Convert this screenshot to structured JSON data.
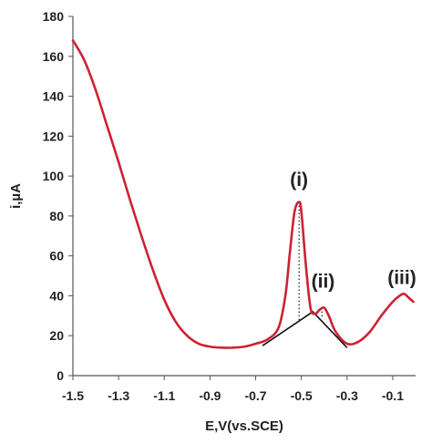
{
  "chart_data": {
    "type": "line",
    "title": "",
    "xlabel": "E,V(vs.SCE)",
    "ylabel": "i,µA",
    "xlim": [
      -1.5,
      0.0
    ],
    "ylim": [
      0,
      180
    ],
    "x_ticks": [
      "-1.5",
      "-1.3",
      "-1.1",
      "-0.9",
      "-0.7",
      "-0.5",
      "-0.3",
      "-0.1"
    ],
    "y_ticks": [
      "0",
      "20",
      "40",
      "60",
      "80",
      "100",
      "120",
      "140",
      "160",
      "180"
    ],
    "grid": false,
    "legend": "none",
    "series": [
      {
        "color": "#cc2233",
        "x": [
          -1.5,
          -1.45,
          -1.4,
          -1.35,
          -1.3,
          -1.25,
          -1.2,
          -1.15,
          -1.1,
          -1.05,
          -1.0,
          -0.95,
          -0.9,
          -0.85,
          -0.8,
          -0.75,
          -0.7,
          -0.65,
          -0.6,
          -0.57,
          -0.55,
          -0.53,
          -0.51,
          -0.5,
          -0.48,
          -0.46,
          -0.44,
          -0.42,
          -0.4,
          -0.38,
          -0.35,
          -0.3,
          -0.25,
          -0.2,
          -0.15,
          -0.1,
          -0.07,
          -0.05,
          -0.03,
          -0.01
        ],
        "y": [
          168,
          158,
          143,
          125,
          107,
          88,
          70,
          53,
          38,
          27,
          20,
          16,
          14.5,
          14,
          14,
          14.5,
          16,
          18,
          24,
          40,
          62,
          82,
          87,
          82,
          55,
          34,
          31,
          33,
          34,
          30,
          22,
          16,
          17,
          22,
          30,
          37,
          40,
          41,
          39,
          37
        ]
      }
    ],
    "annotations": [
      {
        "text": "(i)",
        "x": -0.51,
        "y": 95
      },
      {
        "text": "(ii)",
        "x": -0.405,
        "y": 44
      },
      {
        "text": "(iii)",
        "x": -0.06,
        "y": 46
      }
    ],
    "baselines": [
      {
        "x": [
          -0.67,
          -0.45,
          -0.3
        ],
        "y": [
          15,
          32,
          14
        ]
      }
    ],
    "drop_lines": [
      {
        "x": -0.51,
        "y_from": 87,
        "y_to": 27
      },
      {
        "x": -0.41,
        "y_from": 34,
        "y_to": 29
      }
    ]
  }
}
